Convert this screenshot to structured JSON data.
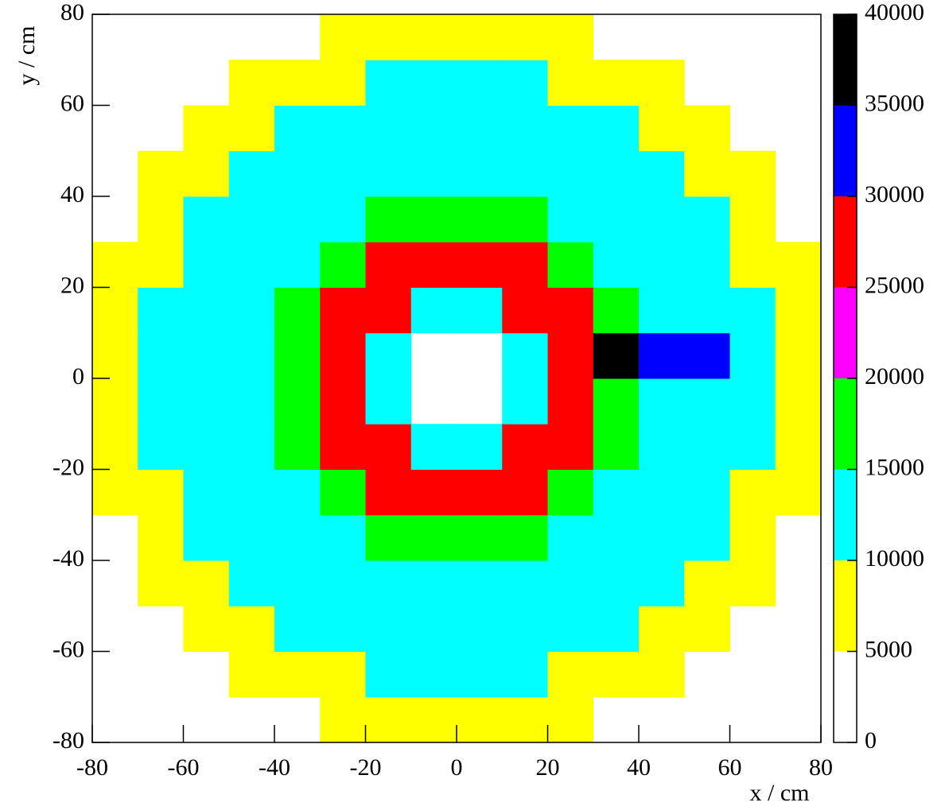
{
  "chart_data": {
    "type": "heatmap",
    "xlabel": "x / cm",
    "ylabel": "y / cm",
    "xbins": [
      -80,
      -70,
      -60,
      -50,
      -40,
      -30,
      -20,
      -10,
      0,
      10,
      20,
      30,
      40,
      50,
      60,
      70,
      80
    ],
    "ybins": [
      -80,
      -70,
      -60,
      -50,
      -40,
      -30,
      -20,
      -10,
      0,
      10,
      20,
      30,
      40,
      50,
      60,
      70,
      80
    ],
    "z": [
      [
        null,
        null,
        null,
        null,
        null,
        8000,
        8000,
        8000,
        8000,
        8000,
        8000,
        null,
        null,
        null,
        null,
        null
      ],
      [
        null,
        null,
        null,
        8000,
        8000,
        8000,
        11000,
        11000,
        11000,
        11000,
        8000,
        8000,
        8000,
        null,
        null,
        null
      ],
      [
        null,
        null,
        8000,
        8000,
        11000,
        11000,
        11000,
        11000,
        11000,
        11000,
        11000,
        11000,
        8000,
        8000,
        null,
        null
      ],
      [
        null,
        8000,
        8000,
        11000,
        11000,
        13000,
        13000,
        13000,
        13000,
        13000,
        13000,
        11000,
        11000,
        8000,
        8000,
        null
      ],
      [
        null,
        8000,
        11000,
        11000,
        13000,
        13000,
        16000,
        16000,
        16000,
        16000,
        13000,
        13000,
        11000,
        11000,
        8000,
        null
      ],
      [
        8000,
        8000,
        11000,
        13000,
        13000,
        16000,
        26000,
        26000,
        26000,
        26000,
        16000,
        13000,
        13000,
        11000,
        8000,
        8000
      ],
      [
        8000,
        11000,
        11000,
        13000,
        16000,
        26000,
        26000,
        12000,
        12000,
        26000,
        26000,
        16000,
        13000,
        11000,
        11000,
        8000
      ],
      [
        8000,
        11000,
        11000,
        13000,
        16000,
        26000,
        12000,
        null,
        null,
        12000,
        26000,
        16000,
        13000,
        11000,
        11000,
        8000
      ],
      [
        8000,
        11000,
        11000,
        13000,
        16000,
        26000,
        12000,
        null,
        null,
        12000,
        26000,
        35000,
        32000,
        30000,
        11000,
        8000
      ],
      [
        8000,
        11000,
        11000,
        13000,
        16000,
        26000,
        26000,
        12000,
        12000,
        26000,
        26000,
        16000,
        13000,
        11000,
        11000,
        8000
      ],
      [
        8000,
        8000,
        11000,
        13000,
        13000,
        16000,
        26000,
        26000,
        26000,
        26000,
        16000,
        13000,
        13000,
        11000,
        8000,
        8000
      ],
      [
        null,
        8000,
        11000,
        11000,
        13000,
        13000,
        16000,
        16000,
        16000,
        16000,
        13000,
        13000,
        11000,
        11000,
        8000,
        null
      ],
      [
        null,
        8000,
        8000,
        11000,
        11000,
        13000,
        13000,
        13000,
        13000,
        13000,
        13000,
        11000,
        11000,
        8000,
        8000,
        null
      ],
      [
        null,
        null,
        8000,
        8000,
        11000,
        11000,
        11000,
        11000,
        11000,
        11000,
        11000,
        11000,
        8000,
        8000,
        null,
        null
      ],
      [
        null,
        null,
        null,
        8000,
        8000,
        8000,
        11000,
        11000,
        11000,
        11000,
        8000,
        8000,
        8000,
        null,
        null,
        null
      ],
      [
        null,
        null,
        null,
        null,
        null,
        8000,
        8000,
        8000,
        8000,
        8000,
        8000,
        null,
        null,
        null,
        null,
        null
      ]
    ],
    "xlim": [
      -80,
      80
    ],
    "ylim": [
      -80,
      80
    ],
    "xticks": [
      -80,
      -60,
      -40,
      -20,
      0,
      20,
      40,
      60,
      80
    ],
    "yticks": [
      -80,
      -60,
      -40,
      -20,
      0,
      20,
      40,
      60,
      80
    ],
    "zlim": [
      0,
      40000
    ],
    "zticks": [
      0,
      5000,
      10000,
      15000,
      20000,
      25000,
      30000,
      35000,
      40000
    ],
    "colors": [
      "#ffffff",
      "#ffff00",
      "#00ffff",
      "#00ff00",
      "#ff00ff",
      "#ff0000",
      "#0000ff",
      "#000000"
    ]
  }
}
